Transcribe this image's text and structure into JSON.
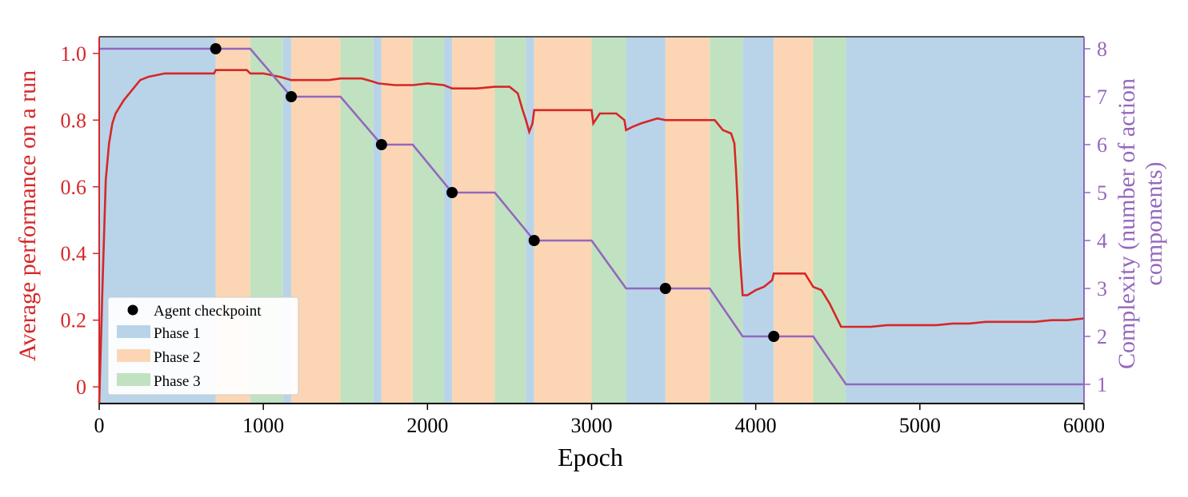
{
  "chart_data": {
    "type": "line",
    "xlabel": "Epoch",
    "ylabel_left": "Average performance on a run",
    "ylabel_right": [
      "Complexity (number of action",
      "components)"
    ],
    "xlim": [
      0,
      6000
    ],
    "ylim_left": [
      -0.05,
      1.05
    ],
    "ylim_right": [
      0.6,
      8.25
    ],
    "x_ticks": [
      0,
      1000,
      2000,
      3000,
      4000,
      5000,
      6000
    ],
    "x_tick_labels": [
      "0",
      "1000",
      "2000",
      "3000",
      "4000",
      "5000",
      "6000"
    ],
    "y_left_ticks": [
      0,
      0.2,
      0.4,
      0.6,
      0.8,
      1.0
    ],
    "y_left_tick_labels": [
      "0",
      "0.2",
      "0.4",
      "0.6",
      "0.8",
      "1.0"
    ],
    "y_right_ticks": [
      1,
      2,
      3,
      4,
      5,
      6,
      7,
      8
    ],
    "y_right_tick_labels": [
      "1",
      "2",
      "3",
      "4",
      "5",
      "6",
      "7",
      "8"
    ],
    "colors": {
      "performance": "#d62728",
      "complexity": "#9467bd",
      "phase1": "#b9d4e8",
      "phase2": "#fcd6b4",
      "phase3": "#c1e2c1",
      "checkpoint": "#000000"
    },
    "legend": {
      "position": "lower-left",
      "entries": [
        "Agent checkpoint",
        "Phase 1",
        "Phase 2",
        "Phase 3"
      ]
    },
    "phases": [
      {
        "phase": 1,
        "start": 0,
        "end": 710
      },
      {
        "phase": 2,
        "start": 710,
        "end": 920
      },
      {
        "phase": 3,
        "start": 920,
        "end": 1120
      },
      {
        "phase": 1,
        "start": 1120,
        "end": 1170
      },
      {
        "phase": 2,
        "start": 1170,
        "end": 1470
      },
      {
        "phase": 3,
        "start": 1470,
        "end": 1670
      },
      {
        "phase": 1,
        "start": 1670,
        "end": 1720
      },
      {
        "phase": 2,
        "start": 1720,
        "end": 1910
      },
      {
        "phase": 3,
        "start": 1910,
        "end": 2100
      },
      {
        "phase": 1,
        "start": 2100,
        "end": 2150
      },
      {
        "phase": 2,
        "start": 2150,
        "end": 2410
      },
      {
        "phase": 3,
        "start": 2410,
        "end": 2600
      },
      {
        "phase": 1,
        "start": 2600,
        "end": 2650
      },
      {
        "phase": 2,
        "start": 2650,
        "end": 3000
      },
      {
        "phase": 3,
        "start": 3000,
        "end": 3210
      },
      {
        "phase": 1,
        "start": 3210,
        "end": 3450
      },
      {
        "phase": 2,
        "start": 3450,
        "end": 3720
      },
      {
        "phase": 3,
        "start": 3720,
        "end": 3920
      },
      {
        "phase": 1,
        "start": 3920,
        "end": 4110
      },
      {
        "phase": 2,
        "start": 4110,
        "end": 4350
      },
      {
        "phase": 3,
        "start": 4350,
        "end": 4550
      },
      {
        "phase": 1,
        "start": 4550,
        "end": 6000
      }
    ],
    "series": [
      {
        "name": "Average performance on a run",
        "axis": "left",
        "x": [
          0,
          20,
          40,
          60,
          80,
          100,
          150,
          200,
          250,
          300,
          350,
          400,
          500,
          600,
          700,
          710,
          800,
          900,
          920,
          1000,
          1100,
          1170,
          1300,
          1400,
          1470,
          1600,
          1670,
          1700,
          1800,
          1910,
          2000,
          2100,
          2150,
          2300,
          2410,
          2500,
          2550,
          2580,
          2600,
          2620,
          2640,
          2650,
          2700,
          2800,
          2900,
          3000,
          3010,
          3050,
          3100,
          3150,
          3200,
          3210,
          3250,
          3300,
          3400,
          3450,
          3500,
          3600,
          3700,
          3750,
          3800,
          3850,
          3870,
          3880,
          3890,
          3900,
          3920,
          3950,
          4000,
          4050,
          4100,
          4110,
          4200,
          4300,
          4350,
          4400,
          4450,
          4500,
          4520,
          4550,
          4600,
          4700,
          4800,
          4900,
          5000,
          5100,
          5200,
          5300,
          5400,
          5500,
          5600,
          5700,
          5800,
          5900,
          6000
        ],
        "y": [
          -0.05,
          0.3,
          0.62,
          0.73,
          0.79,
          0.82,
          0.86,
          0.89,
          0.92,
          0.93,
          0.935,
          0.94,
          0.94,
          0.94,
          0.94,
          0.95,
          0.95,
          0.95,
          0.94,
          0.94,
          0.93,
          0.92,
          0.92,
          0.92,
          0.925,
          0.925,
          0.915,
          0.91,
          0.905,
          0.905,
          0.91,
          0.905,
          0.895,
          0.895,
          0.9,
          0.9,
          0.88,
          0.83,
          0.8,
          0.765,
          0.79,
          0.83,
          0.83,
          0.83,
          0.83,
          0.83,
          0.79,
          0.82,
          0.82,
          0.82,
          0.8,
          0.77,
          0.78,
          0.79,
          0.805,
          0.8,
          0.8,
          0.8,
          0.8,
          0.8,
          0.77,
          0.76,
          0.73,
          0.65,
          0.55,
          0.42,
          0.275,
          0.275,
          0.29,
          0.3,
          0.32,
          0.34,
          0.34,
          0.34,
          0.3,
          0.29,
          0.25,
          0.2,
          0.18,
          0.18,
          0.18,
          0.18,
          0.185,
          0.185,
          0.185,
          0.185,
          0.19,
          0.19,
          0.195,
          0.195,
          0.195,
          0.195,
          0.2,
          0.2,
          0.205
        ]
      },
      {
        "name": "Complexity (number of action components)",
        "axis": "right",
        "x": [
          0,
          920,
          1170,
          1470,
          1720,
          1910,
          2150,
          2410,
          2650,
          3000,
          3210,
          3720,
          3920,
          4350,
          4550,
          6000
        ],
        "y": [
          8,
          8,
          7,
          7,
          6,
          6,
          5,
          5,
          4,
          4,
          3,
          3,
          2,
          2,
          1,
          1
        ]
      }
    ],
    "checkpoints": {
      "name": "Agent checkpoint",
      "axis": "right",
      "x": [
        710,
        1170,
        1720,
        2150,
        2650,
        3450,
        4110
      ],
      "y": [
        8,
        7,
        6,
        5,
        4,
        3,
        2
      ]
    }
  }
}
